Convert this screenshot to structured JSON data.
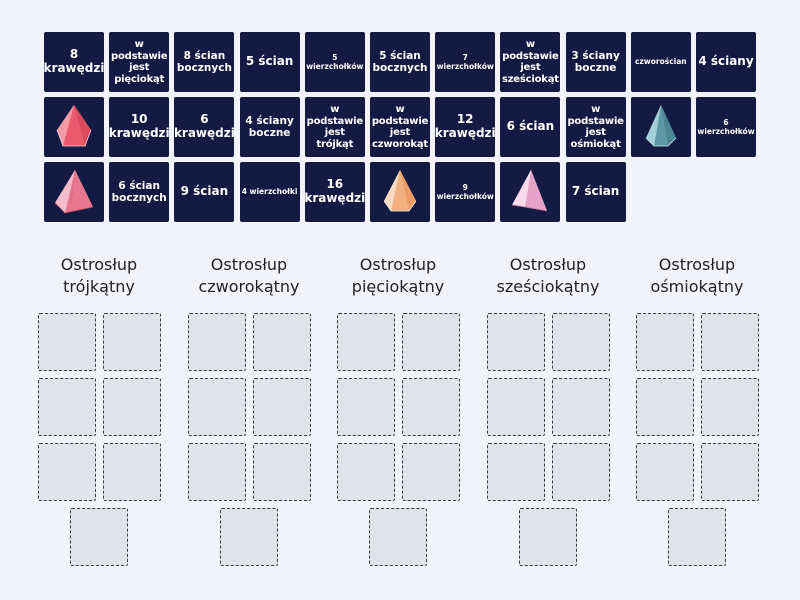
{
  "tiles": [
    {
      "text": "8 krawędzi",
      "size": "f13"
    },
    {
      "text": "w podstawie jest pięciokąt",
      "size": "f10"
    },
    {
      "text": "8 ścian bocznych",
      "size": "f11"
    },
    {
      "text": "5 ścian",
      "size": "f13"
    },
    {
      "text": "5 wierzchołków",
      "size": "f7"
    },
    {
      "text": "5 ścian bocznych",
      "size": "f11"
    },
    {
      "text": "7 wierzchołków",
      "size": "f7"
    },
    {
      "text": "w podstawie jest sześciokąt",
      "size": "f10"
    },
    {
      "text": "3 ściany boczne",
      "size": "f11"
    },
    {
      "text": "czworościan",
      "size": "f7"
    },
    {
      "text": "4 ściany",
      "size": "f13"
    },
    {
      "text": "",
      "image": "red-pentagonal-pyramid-icon"
    },
    {
      "text": "10 krawędzi",
      "size": "f13"
    },
    {
      "text": "6 krawędzi",
      "size": "f13"
    },
    {
      "text": "4 ściany boczne",
      "size": "f11"
    },
    {
      "text": "w podstawie jest trójkąt",
      "size": "f10"
    },
    {
      "text": "w podstawie jest czworokąt",
      "size": "f10"
    },
    {
      "text": "12 krawędzi",
      "size": "f13"
    },
    {
      "text": "6 ścian",
      "size": "f13"
    },
    {
      "text": "w podstawie jest ośmiokąt",
      "size": "f10"
    },
    {
      "text": "",
      "image": "teal-pyramid-icon"
    },
    {
      "text": "6 wierzchołków",
      "size": "f7"
    },
    {
      "text": "",
      "image": "pink-square-pyramid-icon"
    },
    {
      "text": "6 ścian bocznych",
      "size": "f11"
    },
    {
      "text": "9 ścian",
      "size": "f13"
    },
    {
      "text": "4 wierzchołki",
      "size": "f7"
    },
    {
      "text": "16 krawędzi",
      "size": "f13"
    },
    {
      "text": "",
      "image": "orange-hexagonal-pyramid-icon"
    },
    {
      "text": "9 wierzchołków",
      "size": "f7"
    },
    {
      "text": "",
      "image": "lilac-triangular-pyramid-icon"
    },
    {
      "text": "7 ścian",
      "size": "f13"
    }
  ],
  "columns": [
    {
      "title": "Ostrosłup trójkątny"
    },
    {
      "title": "Ostrosłup czworokątny"
    },
    {
      "title": "Ostrosłup pięciokątny"
    },
    {
      "title": "Ostrosłup sześciokątny"
    },
    {
      "title": "Ostrosłup ośmiokątny"
    }
  ],
  "colors": {
    "tile_bg": "#131b43",
    "slot_bg": "#e1e2ea",
    "page_bg": "#f2f3f8"
  }
}
